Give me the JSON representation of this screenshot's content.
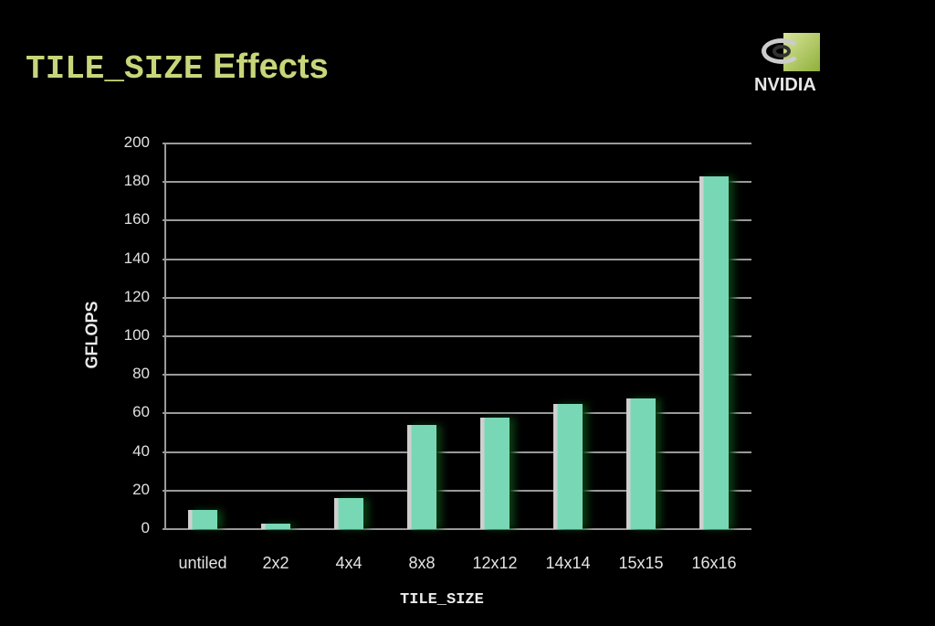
{
  "slide": {
    "title_mono": "TILE_SIZE",
    "title_sans": "Effects",
    "logo_text": "NVIDIA"
  },
  "chart_data": {
    "type": "bar",
    "title": "TILE_SIZE Effects",
    "xlabel": "TILE_SIZE",
    "ylabel": "GFLOPS",
    "ylim": [
      0,
      200
    ],
    "yticks": [
      0,
      20,
      40,
      60,
      80,
      100,
      120,
      140,
      160,
      180,
      200
    ],
    "grid": true,
    "legend": null,
    "categories": [
      "untiled",
      "2x2",
      "4x4",
      "8x8",
      "12x12",
      "14x14",
      "15x15",
      "16x16"
    ],
    "values": [
      10,
      3,
      16,
      54,
      58,
      65,
      68,
      183
    ],
    "colors": {
      "bar": "#78d8b6",
      "grid": "#9a9a9a",
      "title": "#c8d67a",
      "background": "#000000"
    }
  }
}
